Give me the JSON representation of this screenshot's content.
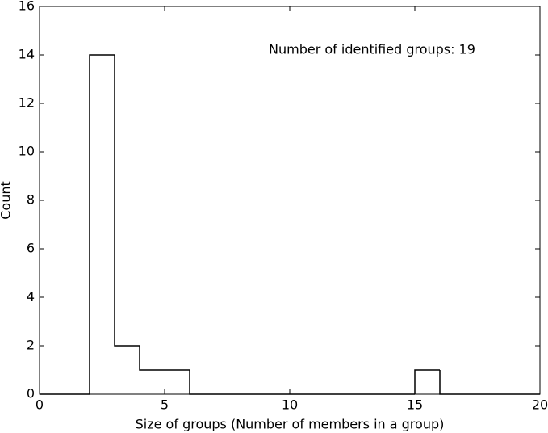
{
  "chart_data": {
    "type": "histogram",
    "xlabel": "Size of groups (Number of members in a group)",
    "ylabel": "Count",
    "annotation": "Number of identified groups: 19",
    "bins": [
      0,
      1,
      2,
      3,
      4,
      5,
      6,
      7,
      8,
      9,
      10,
      11,
      12,
      13,
      14,
      15,
      16,
      17,
      18,
      19,
      20
    ],
    "counts": [
      0,
      0,
      14,
      2,
      1,
      1,
      0,
      0,
      0,
      0,
      0,
      0,
      0,
      0,
      0,
      1,
      0,
      0,
      0,
      0
    ],
    "color": "#000000",
    "xlim": [
      0,
      20
    ],
    "xticks": [
      0,
      5,
      10,
      15,
      20
    ],
    "ylim": [
      0,
      16
    ],
    "yticks": [
      0,
      2,
      4,
      6,
      8,
      10,
      12,
      14,
      16
    ]
  }
}
